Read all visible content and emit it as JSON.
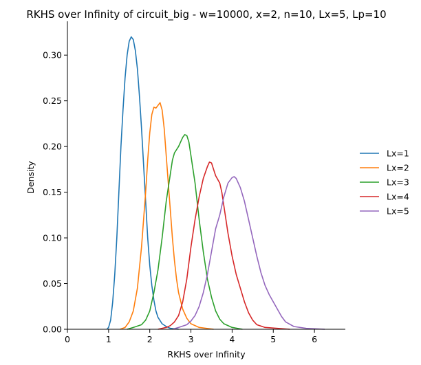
{
  "chart_data": {
    "type": "line",
    "title": "RKHS over Infinity of circuit_big - w=10000, x=2, n=10, Lx=5, Lp=10",
    "xlabel": "RKHS over Infinity",
    "ylabel": "Density",
    "xlim": [
      0,
      6.75
    ],
    "ylim": [
      0,
      0.337
    ],
    "x_ticks": [
      0,
      1,
      2,
      3,
      4,
      5,
      6
    ],
    "y_ticks": [
      0.0,
      0.05,
      0.1,
      0.15,
      0.2,
      0.25,
      0.3
    ],
    "x_tick_labels": [
      "0",
      "1",
      "2",
      "3",
      "4",
      "5",
      "6"
    ],
    "y_tick_labels": [
      "0.00",
      "0.05",
      "0.10",
      "0.15",
      "0.20",
      "0.25",
      "0.30"
    ],
    "grid": false,
    "legend_position": "right",
    "series": [
      {
        "name": "Lx=1",
        "color": "#1f77b4",
        "points": [
          [
            0.96,
            0
          ],
          [
            1.0,
            0.002
          ],
          [
            1.05,
            0.01
          ],
          [
            1.1,
            0.03
          ],
          [
            1.15,
            0.06
          ],
          [
            1.2,
            0.1
          ],
          [
            1.25,
            0.15
          ],
          [
            1.3,
            0.2
          ],
          [
            1.35,
            0.24
          ],
          [
            1.4,
            0.275
          ],
          [
            1.45,
            0.3
          ],
          [
            1.5,
            0.315
          ],
          [
            1.55,
            0.32
          ],
          [
            1.6,
            0.317
          ],
          [
            1.65,
            0.305
          ],
          [
            1.7,
            0.285
          ],
          [
            1.75,
            0.255
          ],
          [
            1.8,
            0.22
          ],
          [
            1.85,
            0.18
          ],
          [
            1.9,
            0.14
          ],
          [
            1.95,
            0.1
          ],
          [
            2.0,
            0.07
          ],
          [
            2.05,
            0.048
          ],
          [
            2.1,
            0.032
          ],
          [
            2.15,
            0.02
          ],
          [
            2.2,
            0.013
          ],
          [
            2.3,
            0.006
          ],
          [
            2.4,
            0.003
          ],
          [
            2.5,
            0.001
          ],
          [
            2.7,
            0
          ]
        ]
      },
      {
        "name": "Lx=2",
        "color": "#ff7f0e",
        "points": [
          [
            1.28,
            0
          ],
          [
            1.4,
            0.002
          ],
          [
            1.5,
            0.008
          ],
          [
            1.6,
            0.02
          ],
          [
            1.7,
            0.045
          ],
          [
            1.8,
            0.09
          ],
          [
            1.9,
            0.15
          ],
          [
            1.95,
            0.185
          ],
          [
            2.0,
            0.215
          ],
          [
            2.05,
            0.235
          ],
          [
            2.1,
            0.243
          ],
          [
            2.15,
            0.242
          ],
          [
            2.2,
            0.245
          ],
          [
            2.25,
            0.248
          ],
          [
            2.3,
            0.24
          ],
          [
            2.35,
            0.22
          ],
          [
            2.4,
            0.19
          ],
          [
            2.45,
            0.16
          ],
          [
            2.5,
            0.13
          ],
          [
            2.55,
            0.1
          ],
          [
            2.6,
            0.075
          ],
          [
            2.65,
            0.055
          ],
          [
            2.7,
            0.04
          ],
          [
            2.8,
            0.022
          ],
          [
            2.9,
            0.012
          ],
          [
            3.0,
            0.006
          ],
          [
            3.2,
            0.002
          ],
          [
            3.55,
            0
          ]
        ]
      },
      {
        "name": "Lx=3",
        "color": "#2ca02c",
        "points": [
          [
            1.45,
            0
          ],
          [
            1.6,
            0.002
          ],
          [
            1.8,
            0.005
          ],
          [
            1.9,
            0.01
          ],
          [
            2.0,
            0.02
          ],
          [
            2.1,
            0.04
          ],
          [
            2.2,
            0.065
          ],
          [
            2.3,
            0.1
          ],
          [
            2.4,
            0.14
          ],
          [
            2.5,
            0.17
          ],
          [
            2.55,
            0.185
          ],
          [
            2.6,
            0.193
          ],
          [
            2.7,
            0.2
          ],
          [
            2.75,
            0.205
          ],
          [
            2.8,
            0.21
          ],
          [
            2.85,
            0.213
          ],
          [
            2.9,
            0.212
          ],
          [
            2.95,
            0.205
          ],
          [
            3.0,
            0.19
          ],
          [
            3.1,
            0.16
          ],
          [
            3.2,
            0.12
          ],
          [
            3.3,
            0.085
          ],
          [
            3.4,
            0.055
          ],
          [
            3.5,
            0.035
          ],
          [
            3.6,
            0.02
          ],
          [
            3.7,
            0.011
          ],
          [
            3.8,
            0.006
          ],
          [
            4.0,
            0.002
          ],
          [
            4.25,
            0
          ]
        ]
      },
      {
        "name": "Lx=4",
        "color": "#d62728",
        "points": [
          [
            2.2,
            0
          ],
          [
            2.4,
            0.002
          ],
          [
            2.5,
            0.004
          ],
          [
            2.6,
            0.008
          ],
          [
            2.7,
            0.015
          ],
          [
            2.8,
            0.03
          ],
          [
            2.9,
            0.055
          ],
          [
            3.0,
            0.09
          ],
          [
            3.1,
            0.12
          ],
          [
            3.2,
            0.145
          ],
          [
            3.3,
            0.165
          ],
          [
            3.4,
            0.178
          ],
          [
            3.45,
            0.183
          ],
          [
            3.5,
            0.182
          ],
          [
            3.55,
            0.175
          ],
          [
            3.6,
            0.168
          ],
          [
            3.7,
            0.16
          ],
          [
            3.75,
            0.15
          ],
          [
            3.8,
            0.135
          ],
          [
            3.9,
            0.105
          ],
          [
            4.0,
            0.08
          ],
          [
            4.1,
            0.06
          ],
          [
            4.2,
            0.045
          ],
          [
            4.3,
            0.03
          ],
          [
            4.4,
            0.018
          ],
          [
            4.5,
            0.01
          ],
          [
            4.6,
            0.005
          ],
          [
            4.8,
            0.002
          ],
          [
            5.4,
            0
          ]
        ]
      },
      {
        "name": "Lx=5",
        "color": "#9467bd",
        "points": [
          [
            2.55,
            0
          ],
          [
            2.7,
            0.002
          ],
          [
            2.9,
            0.005
          ],
          [
            3.0,
            0.009
          ],
          [
            3.1,
            0.015
          ],
          [
            3.2,
            0.025
          ],
          [
            3.3,
            0.04
          ],
          [
            3.4,
            0.06
          ],
          [
            3.5,
            0.085
          ],
          [
            3.6,
            0.11
          ],
          [
            3.7,
            0.125
          ],
          [
            3.8,
            0.145
          ],
          [
            3.9,
            0.16
          ],
          [
            4.0,
            0.166
          ],
          [
            4.05,
            0.167
          ],
          [
            4.1,
            0.165
          ],
          [
            4.2,
            0.155
          ],
          [
            4.3,
            0.14
          ],
          [
            4.4,
            0.12
          ],
          [
            4.5,
            0.1
          ],
          [
            4.6,
            0.08
          ],
          [
            4.7,
            0.062
          ],
          [
            4.8,
            0.048
          ],
          [
            4.9,
            0.038
          ],
          [
            5.0,
            0.03
          ],
          [
            5.1,
            0.022
          ],
          [
            5.2,
            0.014
          ],
          [
            5.3,
            0.008
          ],
          [
            5.5,
            0.003
          ],
          [
            5.8,
            0.001
          ],
          [
            6.25,
            0
          ]
        ]
      }
    ]
  }
}
